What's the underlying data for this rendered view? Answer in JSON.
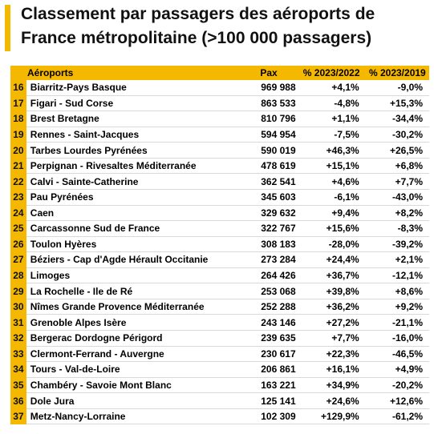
{
  "title": "Classement par passagers des aéroports de France métropolitaine (>100 000 passagers)",
  "colors": {
    "accent": "#F5B800"
  },
  "headers": {
    "airports": "Aéroports",
    "pax": "Pax",
    "pct2022": "% 2023/2022",
    "pct2019": "% 2023/2019"
  },
  "rows": [
    {
      "rank": "16",
      "name": "Biarritz-Pays Basque",
      "pax": "969 988",
      "pct2022": "+4,1%",
      "pct2019": "-9,0%"
    },
    {
      "rank": "17",
      "name": "Figari - Sud Corse",
      "pax": "863 533",
      "pct2022": "-4,8%",
      "pct2019": "+15,3%"
    },
    {
      "rank": "18",
      "name": "Brest Bretagne",
      "pax": "810 796",
      "pct2022": "+1,1%",
      "pct2019": "-34,4%"
    },
    {
      "rank": "19",
      "name": "Rennes - Saint-Jacques",
      "pax": "594 954",
      "pct2022": "-7,5%",
      "pct2019": "-30,2%"
    },
    {
      "rank": "20",
      "name": "Tarbes Lourdes Pyrénées",
      "pax": "590 019",
      "pct2022": "+46,3%",
      "pct2019": "+26,5%"
    },
    {
      "rank": "21",
      "name": "Perpignan - Rivesaltes Méditerranée",
      "pax": "478 619",
      "pct2022": "+15,1%",
      "pct2019": "+6,8%"
    },
    {
      "rank": "22",
      "name": "Calvi - Sainte-Catherine",
      "pax": "362 541",
      "pct2022": "+4,6%",
      "pct2019": "+7,7%"
    },
    {
      "rank": "23",
      "name": "Pau Pyrénées",
      "pax": "345 603",
      "pct2022": "-6,1%",
      "pct2019": "-43,0%"
    },
    {
      "rank": "24",
      "name": "Caen",
      "pax": "329 632",
      "pct2022": "+9,4%",
      "pct2019": "+8,2%"
    },
    {
      "rank": "25",
      "name": "Carcassonne Sud de France",
      "pax": "322 767",
      "pct2022": "+15,6%",
      "pct2019": "-8,3%"
    },
    {
      "rank": "26",
      "name": "Toulon Hyères",
      "pax": "308 183",
      "pct2022": "-28,0%",
      "pct2019": "-39,2%"
    },
    {
      "rank": "27",
      "name": "Béziers - Cap d'Agde Hérault Occitanie",
      "pax": "273 284",
      "pct2022": "+24,4%",
      "pct2019": "+2,1%"
    },
    {
      "rank": "28",
      "name": "Limoges",
      "pax": "264 426",
      "pct2022": "+36,7%",
      "pct2019": "-12,1%"
    },
    {
      "rank": "29",
      "name": "La Rochelle - Ile de Ré",
      "pax": "253 068",
      "pct2022": "+39,8%",
      "pct2019": "+8,6%"
    },
    {
      "rank": "30",
      "name": "Nîmes Grande Provence Méditerranée",
      "pax": "252 288",
      "pct2022": "+36,2%",
      "pct2019": "+9,2%"
    },
    {
      "rank": "31",
      "name": "Grenoble Alpes Isère",
      "pax": "243 146",
      "pct2022": "+27,2%",
      "pct2019": "-21,1%"
    },
    {
      "rank": "32",
      "name": "Bergerac Dordogne Périgord",
      "pax": "239 635",
      "pct2022": "+7,7%",
      "pct2019": "-16,0%"
    },
    {
      "rank": "33",
      "name": "Clermont-Ferrand - Auvergne",
      "pax": "230 617",
      "pct2022": "+22,3%",
      "pct2019": "-46,5%"
    },
    {
      "rank": "34",
      "name": "Tours - Val-de-Loire",
      "pax": "206 861",
      "pct2022": "+16,1%",
      "pct2019": "+4,9%"
    },
    {
      "rank": "35",
      "name": "Chambéry - Savoie Mont Blanc",
      "pax": "163 221",
      "pct2022": "+34,9%",
      "pct2019": "-20,2%"
    },
    {
      "rank": "36",
      "name": "Dole Jura",
      "pax": "125 141",
      "pct2022": "+24,6%",
      "pct2019": "+12,6%"
    },
    {
      "rank": "37",
      "name": "Metz-Nancy-Lorraine",
      "pax": "102 309",
      "pct2022": "+129,9%",
      "pct2019": "-61,2%"
    }
  ]
}
